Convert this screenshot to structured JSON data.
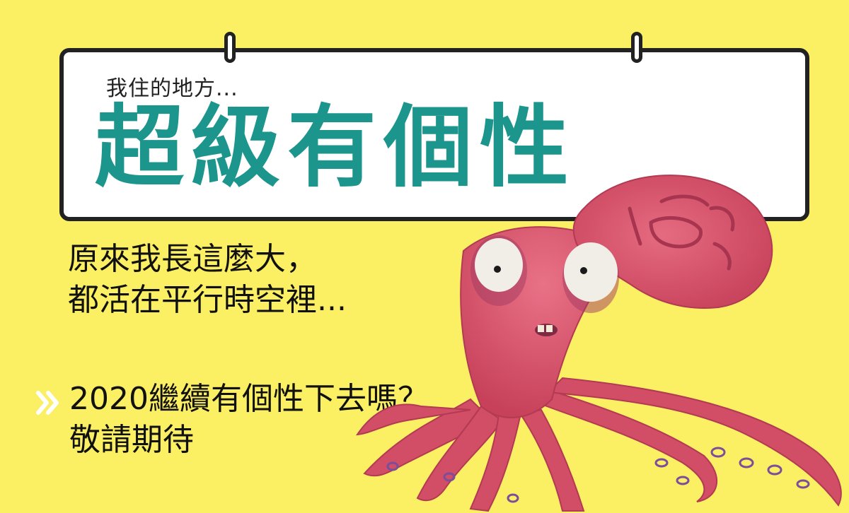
{
  "sign": {
    "subtitle": "我住的地方...",
    "headline": "超級有個性"
  },
  "message": {
    "line1": "原來我長這麼大，",
    "line2": "都活在平行時空裡..."
  },
  "cta": {
    "line1": "2020繼續有個性下去嗎？",
    "line2": "敬請期待"
  },
  "colors": {
    "background": "#fbef63",
    "headline": "#1c958d",
    "sign_border": "#222222",
    "octopus": "#d9516a",
    "chevron": "#ffffff"
  },
  "icons": {
    "cta": "double-chevron-right-icon",
    "illustration": "octopus-illustration"
  }
}
